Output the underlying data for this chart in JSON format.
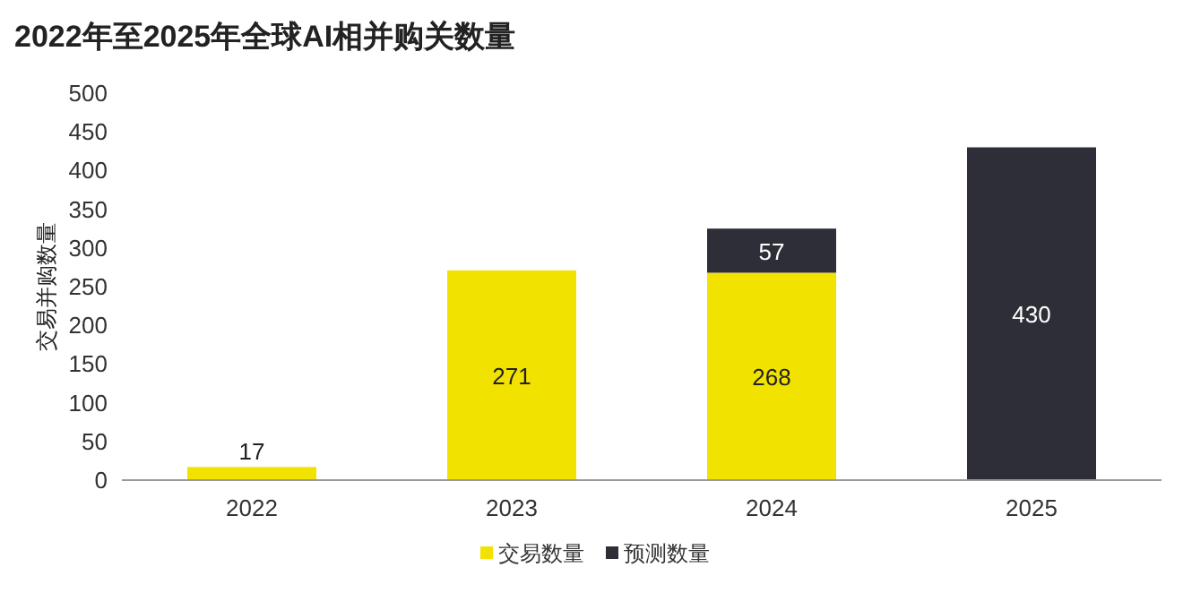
{
  "chart_data": {
    "type": "bar",
    "title": "2022年至2025年全球AI相并购关数量",
    "ylabel": "交易并购数量",
    "categories": [
      "2022",
      "2023",
      "2024",
      "2025"
    ],
    "series": [
      {
        "name": "交易数量",
        "color": "#f2e200",
        "values": [
          17,
          271,
          268,
          null
        ]
      },
      {
        "name": "预测数量",
        "color": "#2e2e38",
        "values": [
          null,
          null,
          57,
          430
        ]
      }
    ],
    "stacked": true,
    "data_labels": true,
    "ylim": [
      0,
      500
    ],
    "yticks": [
      0,
      50,
      100,
      150,
      200,
      250,
      300,
      350,
      400,
      450,
      500
    ],
    "legend": "bottom"
  }
}
